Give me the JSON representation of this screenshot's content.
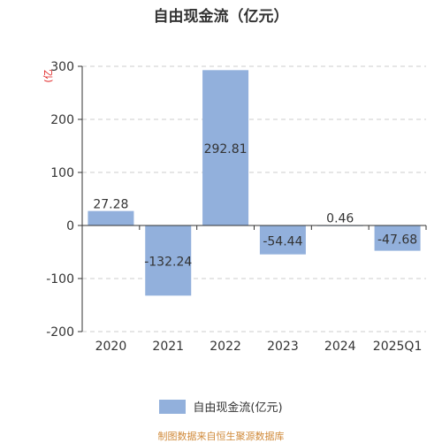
{
  "chart_data": {
    "type": "bar",
    "title": "自由现金流（亿元）",
    "unit_label": "(亿",
    "categories": [
      "2020",
      "2021",
      "2022",
      "2023",
      "2024",
      "2025Q1"
    ],
    "series": [
      {
        "name": "自由现金流(亿元)",
        "values": [
          27.28,
          -132.24,
          292.81,
          -54.44,
          0.46,
          -47.68
        ]
      }
    ],
    "data_labels": [
      "27.28",
      "-132.24",
      "292.81",
      "-54.44",
      "0.46",
      "-47.68"
    ],
    "y_ticks": [
      300,
      200,
      100,
      0,
      -100,
      -200
    ],
    "ylim": [
      -200,
      300
    ],
    "grid": true,
    "legend_position": "bottom",
    "bar_color": "#92b0dc"
  },
  "source": "制图数据来自恒生聚源数据库"
}
